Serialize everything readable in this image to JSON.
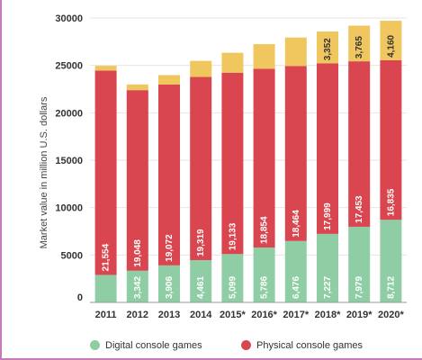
{
  "chart_data": {
    "type": "bar",
    "stacked": true,
    "categories": [
      "2011",
      "2012",
      "2013",
      "2014",
      "2015*",
      "2016*",
      "2017*",
      "2018*",
      "2019*",
      "2020*"
    ],
    "series": [
      {
        "name": "Digital console games",
        "color": "#8fcea5",
        "values": [
          2900,
          3342,
          3906,
          4461,
          5099,
          5786,
          6476,
          7227,
          7979,
          8712
        ],
        "labels": [
          "",
          "3,342",
          "3,906",
          "4,461",
          "5,099",
          "5,786",
          "6,476",
          "7,227",
          "7,979",
          "8,712"
        ]
      },
      {
        "name": "Physical console games",
        "color": "#d9464f",
        "values": [
          21554,
          19048,
          19072,
          19319,
          19133,
          18854,
          18464,
          17999,
          17453,
          16835
        ],
        "labels": [
          "21,554",
          "19,048",
          "19,072",
          "19,319",
          "19,133",
          "18,854",
          "18,464",
          "17,999",
          "17,453",
          "16,835"
        ]
      },
      {
        "color": "#f0c75e",
        "values": [
          500,
          600,
          1000,
          1700,
          2100,
          2600,
          3000,
          3352,
          3765,
          4160
        ],
        "labels": [
          "",
          "",
          "",
          "",
          "",
          "",
          "",
          "3,352",
          "3,765",
          "4,160"
        ]
      }
    ],
    "ylabel": "Market value in million U.S. dollars",
    "ylim": [
      0,
      30000
    ],
    "yticks": [
      0,
      5000,
      10000,
      15000,
      20000,
      25000,
      30000
    ],
    "ytick_labels": [
      "0",
      "5000",
      "10000",
      "15000",
      "20000",
      "25000",
      "30000"
    ],
    "grid": true,
    "legend": "bottom"
  }
}
